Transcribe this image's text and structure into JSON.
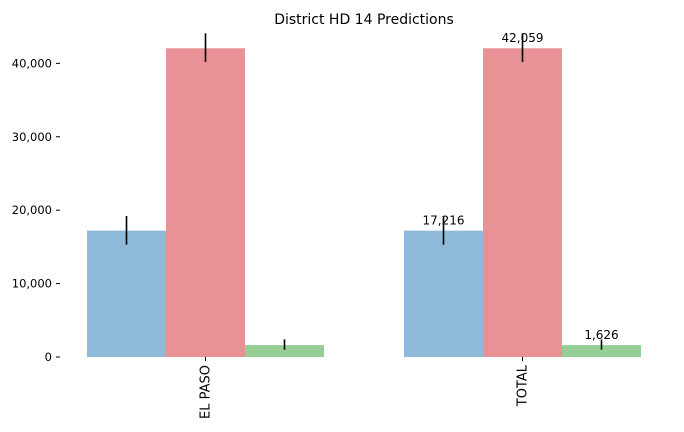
{
  "chart_data": {
    "type": "bar",
    "title": "District HD 14 Predictions",
    "xlabel": "",
    "ylabel": "",
    "categories": [
      "EL PASO",
      "TOTAL"
    ],
    "ylim": [
      0,
      44000
    ],
    "yticks": [
      0,
      10000,
      20000,
      30000,
      40000
    ],
    "ytick_labels": [
      "0",
      "10,000",
      "20,000",
      "30,000",
      "40,000"
    ],
    "grid": false,
    "legend": "none",
    "series": [
      {
        "color": "#8fbad9",
        "values": [
          17216,
          17216
        ],
        "err_low": [
          15300,
          15300
        ],
        "err_high": [
          19200,
          19200
        ],
        "data_labels": [
          "",
          "17,216"
        ]
      },
      {
        "color": "#e99295",
        "values": [
          42059,
          42059
        ],
        "err_low": [
          40200,
          40200
        ],
        "err_high": [
          44100,
          44100
        ],
        "data_labels": [
          "",
          "42,059"
        ]
      },
      {
        "color": "#95cf95",
        "values": [
          1626,
          1626
        ],
        "err_low": [
          1000,
          1000
        ],
        "err_high": [
          2400,
          2400
        ],
        "data_labels": [
          "",
          "1,626"
        ]
      }
    ]
  }
}
